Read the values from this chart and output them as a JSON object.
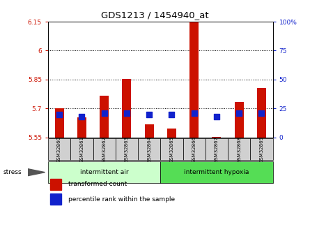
{
  "title": "GDS1213 / 1454940_at",
  "samples": [
    "GSM32860",
    "GSM32861",
    "GSM32862",
    "GSM32863",
    "GSM32864",
    "GSM32865",
    "GSM32866",
    "GSM32867",
    "GSM32868",
    "GSM32869"
  ],
  "transformed_counts": [
    5.7,
    5.655,
    5.765,
    5.853,
    5.618,
    5.595,
    6.22,
    5.553,
    5.735,
    5.805
  ],
  "percentile_ranks": [
    20,
    18,
    21,
    21,
    20,
    20,
    21,
    18,
    21,
    21
  ],
  "ymin": 5.55,
  "ymax": 6.15,
  "yticks": [
    5.55,
    5.7,
    5.85,
    6.0,
    6.15
  ],
  "ytick_labels": [
    "5.55",
    "5.7",
    "5.85",
    "6",
    "6.15"
  ],
  "right_yticks": [
    0,
    25,
    50,
    75,
    100
  ],
  "right_yticklabels": [
    "0",
    "25",
    "50",
    "75",
    "100%"
  ],
  "grid_lines": [
    5.7,
    5.85,
    6.0
  ],
  "bar_color": "#cc1100",
  "dot_color": "#1122cc",
  "bar_width": 0.4,
  "dot_size": 28,
  "group1_label": "intermittent air",
  "group2_label": "intermittent hypoxia",
  "group1_color": "#ccffcc",
  "group2_color": "#55dd55",
  "stress_label": "stress",
  "legend_bar_label": "transformed count",
  "legend_dot_label": "percentile rank within the sample",
  "tick_label_color_left": "#cc1100",
  "tick_label_color_right": "#1122cc"
}
